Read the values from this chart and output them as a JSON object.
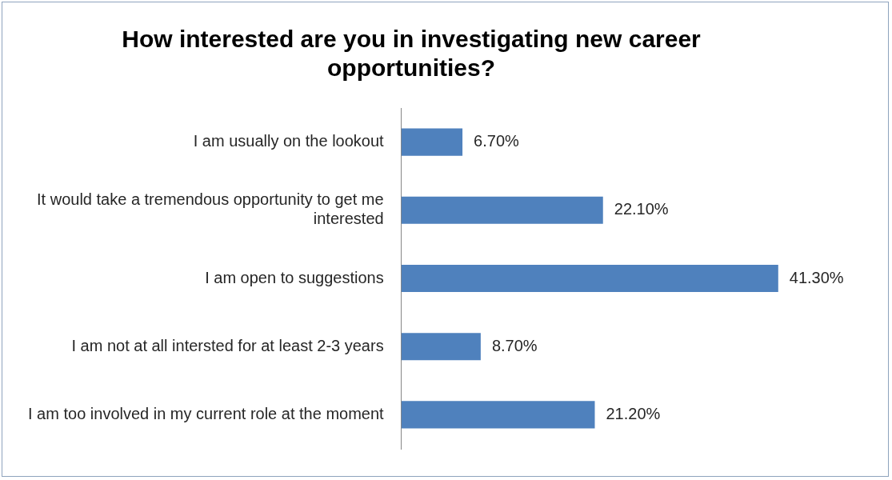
{
  "chart_data": {
    "type": "bar",
    "orientation": "horizontal",
    "title": "How interested are you in investigating new career opportunities?",
    "categories": [
      "I am usually on the lookout",
      "It would take a tremendous opportunity to get me interested",
      "I am open to suggestions",
      "I am not at all intersted for at least 2-3 years",
      "I am too involved in my current role at the moment"
    ],
    "values": [
      6.7,
      22.1,
      41.3,
      8.7,
      21.2
    ],
    "value_labels": [
      "6.70%",
      "22.10%",
      "41.30%",
      "8.70%",
      "21.20%"
    ],
    "color": "#4f81bd"
  }
}
